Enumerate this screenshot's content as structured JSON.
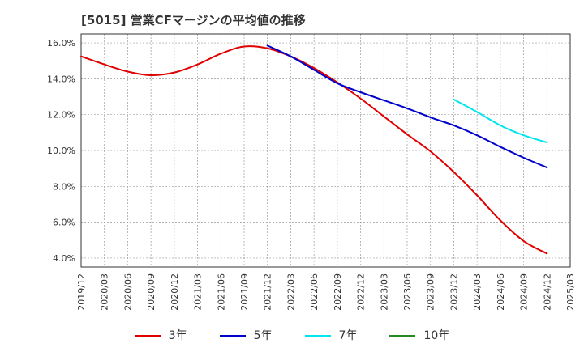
{
  "chart_data": {
    "type": "line",
    "title": "[5015]  営業CFマージンの平均値の推移",
    "xlabel": "",
    "ylabel": "",
    "x_ticks": [
      "2019/12",
      "2020/03",
      "2020/06",
      "2020/09",
      "2020/12",
      "2021/03",
      "2021/06",
      "2021/09",
      "2021/12",
      "2022/03",
      "2022/06",
      "2022/09",
      "2022/12",
      "2023/03",
      "2023/06",
      "2023/09",
      "2023/12",
      "2024/03",
      "2024/06",
      "2024/09",
      "2024/12",
      "2025/03"
    ],
    "y_ticks": [
      "4.0%",
      "6.0%",
      "8.0%",
      "10.0%",
      "12.0%",
      "14.0%",
      "16.0%"
    ],
    "ylim": [
      3.5,
      16.5
    ],
    "grid": true,
    "legend_placement": "bottom",
    "series": [
      {
        "name": "3年",
        "color": "#e00000",
        "points": [
          [
            "2019/12",
            15.25
          ],
          [
            "2020/03",
            14.8
          ],
          [
            "2020/06",
            14.4
          ],
          [
            "2020/09",
            14.2
          ],
          [
            "2020/12",
            14.35
          ],
          [
            "2021/03",
            14.8
          ],
          [
            "2021/06",
            15.4
          ],
          [
            "2021/09",
            15.8
          ],
          [
            "2021/12",
            15.7
          ],
          [
            "2022/03",
            15.25
          ],
          [
            "2022/06",
            14.6
          ],
          [
            "2022/09",
            13.8
          ],
          [
            "2022/12",
            12.9
          ],
          [
            "2023/03",
            11.9
          ],
          [
            "2023/06",
            10.9
          ],
          [
            "2023/09",
            9.95
          ],
          [
            "2023/12",
            8.8
          ],
          [
            "2024/03",
            7.5
          ],
          [
            "2024/06",
            6.1
          ],
          [
            "2024/09",
            4.95
          ],
          [
            "2024/12",
            4.25
          ]
        ]
      },
      {
        "name": "5年",
        "color": "#0000cc",
        "points": [
          [
            "2021/12",
            15.85
          ],
          [
            "2022/03",
            15.25
          ],
          [
            "2022/06",
            14.5
          ],
          [
            "2022/09",
            13.75
          ],
          [
            "2022/12",
            13.25
          ],
          [
            "2023/03",
            12.8
          ],
          [
            "2023/06",
            12.35
          ],
          [
            "2023/09",
            11.85
          ],
          [
            "2023/12",
            11.4
          ],
          [
            "2024/03",
            10.85
          ],
          [
            "2024/06",
            10.2
          ],
          [
            "2024/09",
            9.6
          ],
          [
            "2024/12",
            9.05
          ]
        ]
      },
      {
        "name": "7年",
        "color": "#00e5ee",
        "points": [
          [
            "2023/12",
            12.85
          ],
          [
            "2024/03",
            12.15
          ],
          [
            "2024/06",
            11.4
          ],
          [
            "2024/09",
            10.85
          ],
          [
            "2024/12",
            10.45
          ]
        ]
      },
      {
        "name": "10年",
        "color": "#228b22",
        "points": []
      }
    ]
  }
}
